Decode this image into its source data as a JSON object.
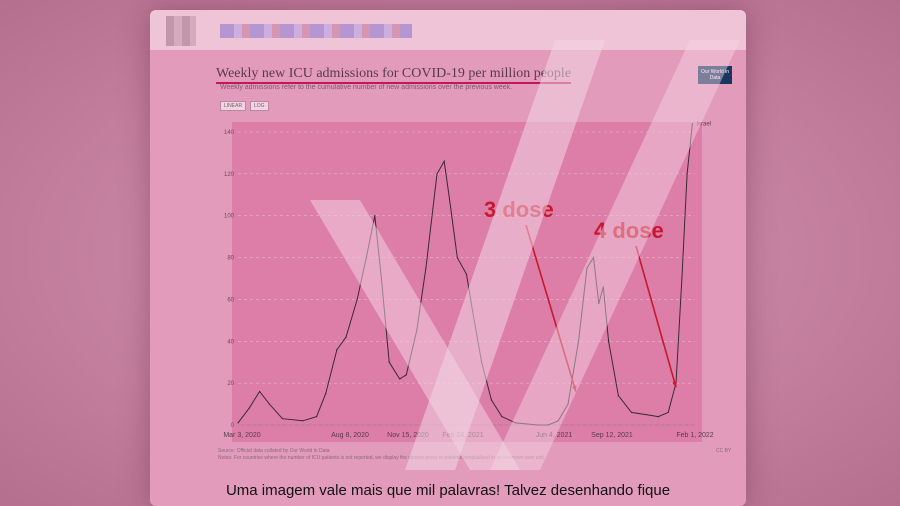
{
  "caption": "Uma imagem vale mais que mil palavras! Talvez desenhando fique",
  "chart_header": {
    "title": "Weekly new ICU admissions for COVID-19 per million people",
    "subtitle": "Weekly admissions refer to the cumulative number of new admissions over the previous week.",
    "linear_label": "LINEAR",
    "log_label": "LOG",
    "logo_text": "Our World in Data",
    "source_text": "Source: Official data collated by Our World in Data",
    "note_text": "Notes: For countries where the number of ICU patients is not reported, we display the closest proxy to patients hospitalized in an intensive care unit.",
    "license": "CC BY"
  },
  "colors": {
    "line": "#3a2a32",
    "annotation": "#c8182c",
    "title_underline": "#c2185b",
    "watermark": "#f3d6e4"
  },
  "chart_data": {
    "type": "line",
    "title": "Weekly new ICU admissions for COVID-19 per million people",
    "xlabel": "",
    "ylabel": "",
    "ylim": [
      0,
      140
    ],
    "yticks": [
      0,
      20,
      40,
      60,
      80,
      100,
      120,
      140
    ],
    "xtick_labels": [
      "Mar 3, 2020",
      "Aug 8, 2020",
      "Nov 15, 2020",
      "Feb 24, 2021",
      "Jun 4, 2021",
      "Sep 12, 2021",
      "Feb 1, 2022"
    ],
    "grid": true,
    "series": [
      {
        "name": "Israel",
        "x": [
          "2020-03-03",
          "2020-03-20",
          "2020-04-05",
          "2020-04-20",
          "2020-05-10",
          "2020-06-10",
          "2020-07-01",
          "2020-07-15",
          "2020-08-01",
          "2020-08-15",
          "2020-09-01",
          "2020-09-15",
          "2020-09-28",
          "2020-10-08",
          "2020-10-20",
          "2020-11-05",
          "2020-11-15",
          "2020-12-01",
          "2020-12-15",
          "2021-01-01",
          "2021-01-12",
          "2021-01-20",
          "2021-02-01",
          "2021-02-15",
          "2021-02-24",
          "2021-03-10",
          "2021-03-25",
          "2021-04-10",
          "2021-05-01",
          "2021-06-04",
          "2021-06-20",
          "2021-07-05",
          "2021-07-20",
          "2021-08-05",
          "2021-08-18",
          "2021-08-28",
          "2021-09-05",
          "2021-09-12",
          "2021-09-20",
          "2021-10-05",
          "2021-10-25",
          "2021-11-15",
          "2021-12-05",
          "2021-12-20",
          "2022-01-01",
          "2022-01-10",
          "2022-01-18",
          "2022-01-26"
        ],
        "values": [
          1,
          8,
          16,
          10,
          3,
          2,
          4,
          15,
          36,
          42,
          60,
          80,
          100,
          70,
          30,
          22,
          24,
          45,
          75,
          120,
          126,
          108,
          80,
          72,
          55,
          30,
          12,
          4,
          1,
          0,
          0,
          2,
          10,
          40,
          75,
          80,
          58,
          66,
          40,
          14,
          6,
          5,
          4,
          6,
          20,
          70,
          120,
          144
        ]
      }
    ],
    "end_label": "Israel",
    "annotations": [
      {
        "text": "3 dose",
        "date": "2021-08-01",
        "value": 16
      },
      {
        "text": "4 dose",
        "date": "2022-01-01",
        "value": 18
      }
    ]
  }
}
